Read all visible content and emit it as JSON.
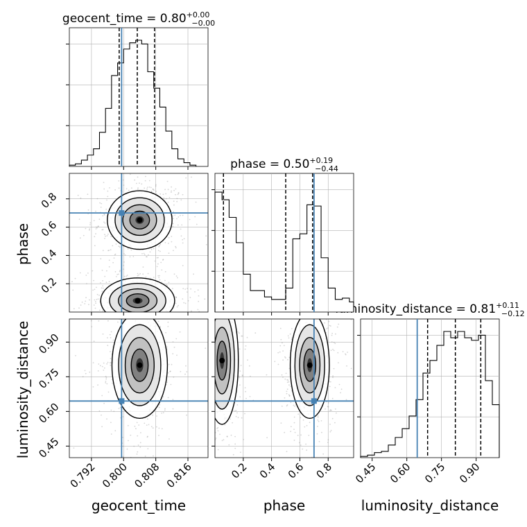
{
  "chart_data": {
    "type": "corner",
    "truth_color": "#4682b4",
    "hist_color": "#000000",
    "params": [
      {
        "label": "geocent_time",
        "title": {
          "prefix": "geocent_time = ",
          "value": "0.80",
          "plus": "+0.00",
          "minus": "−0.00"
        },
        "range": [
          0.7865,
          0.821
        ],
        "ticks": [
          0.792,
          0.8,
          0.808,
          0.816
        ],
        "tick_labels": [
          "0.792",
          "0.800",
          "0.808",
          "0.816"
        ],
        "truth": 0.7995,
        "quantiles": [
          0.7989,
          0.8034,
          0.8077
        ],
        "hist_bins": [
          0.7865,
          0.788,
          0.7895,
          0.791,
          0.7925,
          0.794,
          0.7955,
          0.797,
          0.7985,
          0.8,
          0.8015,
          0.803,
          0.8045,
          0.806,
          0.8075,
          0.809,
          0.8105,
          0.812,
          0.8135,
          0.815,
          0.8165,
          0.818
        ],
        "hist_values": [
          0.01,
          0.02,
          0.05,
          0.09,
          0.14,
          0.27,
          0.46,
          0.72,
          0.82,
          0.93,
          0.98,
          1.0,
          0.97,
          0.75,
          0.62,
          0.47,
          0.28,
          0.14,
          0.06,
          0.03,
          0.01
        ]
      },
      {
        "label": "phase",
        "title": {
          "prefix": "phase = ",
          "value": "0.50",
          "plus": "+0.19",
          "minus": "−0.44"
        },
        "range": [
          0.0,
          0.98
        ],
        "ticks": [
          0.2,
          0.4,
          0.6,
          0.8
        ],
        "tick_labels": [
          "0.2",
          "0.4",
          "0.6",
          "0.8"
        ],
        "truth": 0.7,
        "quantiles": [
          0.06,
          0.5,
          0.69
        ],
        "hist_bins": [
          0.0,
          0.05,
          0.1,
          0.15,
          0.2,
          0.25,
          0.3,
          0.35,
          0.4,
          0.45,
          0.5,
          0.55,
          0.6,
          0.65,
          0.7,
          0.75,
          0.8,
          0.85,
          0.9,
          0.95,
          0.98
        ],
        "hist_values": [
          0.95,
          0.89,
          0.75,
          0.55,
          0.3,
          0.17,
          0.17,
          0.12,
          0.1,
          0.1,
          0.19,
          0.58,
          0.62,
          0.85,
          0.84,
          0.43,
          0.19,
          0.1,
          0.11,
          0.08
        ]
      },
      {
        "label": "luminosity_distance",
        "title": {
          "prefix": "luminosity_distance = ",
          "value": "0.81",
          "plus": "+0.11",
          "minus": "−0.12"
        },
        "range": [
          0.4,
          1.0
        ],
        "ticks": [
          0.45,
          0.6,
          0.75,
          0.9
        ],
        "tick_labels": [
          "0.45",
          "0.60",
          "0.75",
          "0.90"
        ],
        "truth": 0.645,
        "quantiles": [
          0.69,
          0.81,
          0.92
        ],
        "hist_bins": [
          0.4,
          0.43,
          0.46,
          0.49,
          0.52,
          0.55,
          0.58,
          0.61,
          0.64,
          0.67,
          0.7,
          0.73,
          0.76,
          0.79,
          0.82,
          0.85,
          0.88,
          0.91,
          0.94,
          0.97,
          1.0
        ],
        "hist_values": [
          0.01,
          0.02,
          0.04,
          0.05,
          0.1,
          0.16,
          0.23,
          0.33,
          0.46,
          0.67,
          0.77,
          0.89,
          1.0,
          0.95,
          1.0,
          0.95,
          0.93,
          0.97,
          0.61,
          0.42
        ]
      }
    ],
    "pairs": [
      {
        "x": 0,
        "y": 1,
        "density_peaks": [
          {
            "cx": 0.804,
            "cy": 0.65,
            "sx": 0.0035,
            "sy": 0.09,
            "w": 1.0
          },
          {
            "cx": 0.8035,
            "cy": 0.08,
            "sx": 0.004,
            "sy": 0.07,
            "w": 0.9
          }
        ]
      },
      {
        "x": 0,
        "y": 2,
        "density_peaks": [
          {
            "cx": 0.804,
            "cy": 0.8,
            "sx": 0.003,
            "sy": 0.1,
            "w": 1.0
          }
        ]
      },
      {
        "x": 1,
        "y": 2,
        "density_peaks": [
          {
            "cx": 0.67,
            "cy": 0.8,
            "sx": 0.06,
            "sy": 0.1,
            "w": 1.0
          },
          {
            "cx": 0.05,
            "cy": 0.82,
            "sx": 0.05,
            "sy": 0.12,
            "w": 0.9
          }
        ]
      }
    ]
  }
}
